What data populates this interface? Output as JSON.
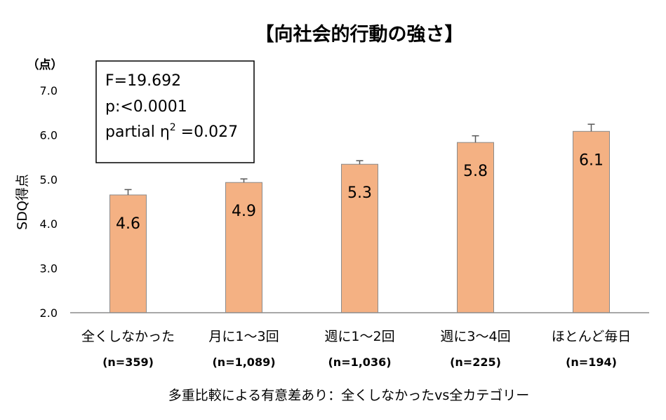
{
  "chart_data": {
    "type": "bar",
    "title": "【向社会的行動の強さ】",
    "unit_label": "（点）",
    "ylabel": "SDQ得点",
    "ylim": [
      2.0,
      7.0
    ],
    "yticks": [
      "2.0",
      "3.0",
      "4.0",
      "5.0",
      "6.0",
      "7.0"
    ],
    "categories": [
      "全くしなかった",
      "月に1〜3回",
      "週に1〜2回",
      "週に3〜4回",
      "ほとんど毎日"
    ],
    "counts": [
      "(n=359)",
      "(n=1,089)",
      "(n=1,036)",
      "(n=225)",
      "(n=194)"
    ],
    "values": [
      4.65,
      4.93,
      5.34,
      5.83,
      6.08
    ],
    "value_labels": [
      "4.6",
      "4.9",
      "5.3",
      "5.8",
      "6.1"
    ],
    "error_plus": [
      0.12,
      0.08,
      0.08,
      0.15,
      0.16
    ],
    "bar_color": "#F4B183",
    "bar_edge_color": "#8B8B8B",
    "stats": {
      "f": "F=19.692",
      "p": "p:<0.0001",
      "eta_prefix": "partial η",
      "eta_sup": "2",
      "eta_suffix": " =0.027"
    },
    "note": "多重比較による有意差あり：全くしなかったvs全カテゴリー",
    "grid": false
  }
}
